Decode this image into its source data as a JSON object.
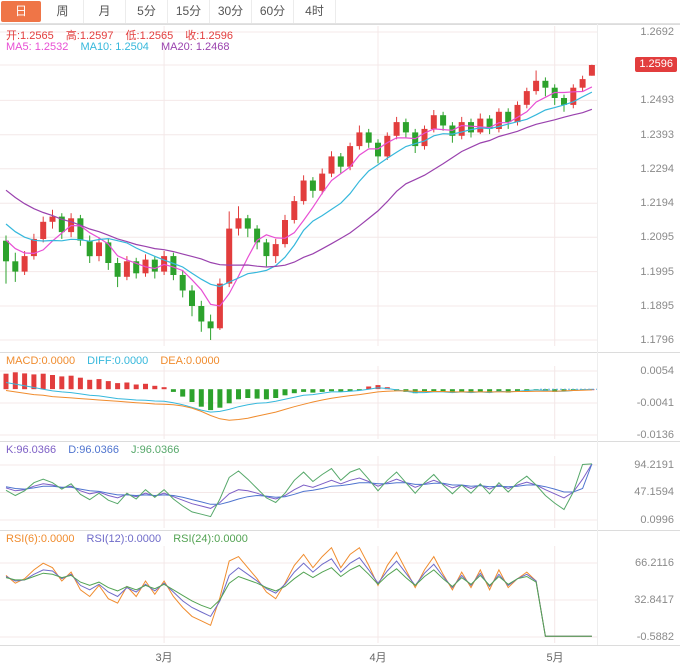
{
  "toolbar": {
    "tabs": [
      {
        "name": "day",
        "label": "日",
        "active": true
      },
      {
        "name": "week",
        "label": "周",
        "active": false
      },
      {
        "name": "month",
        "label": "月",
        "active": false
      },
      {
        "name": "min5",
        "label": "5分",
        "active": false
      },
      {
        "name": "min15",
        "label": "15分",
        "active": false
      },
      {
        "name": "min30",
        "label": "30分",
        "active": false
      },
      {
        "name": "min60",
        "label": "60分",
        "active": false
      },
      {
        "name": "hour4",
        "label": "4时",
        "active": false
      }
    ]
  },
  "main": {
    "ohlc": {
      "open": "开:1.2565",
      "high": "高:1.2597",
      "low": "低:1.2565",
      "close": "收:1.2596"
    },
    "ma": {
      "ma5": "MA5: 1.2532",
      "ma10": "MA10: 1.2504",
      "ma20": "MA20: 1.2468"
    },
    "current_price": "1.2596"
  },
  "macd_header": {
    "macd": "MACD:0.0000",
    "diff": "DIFF:0.0000",
    "dea": "DEA:0.0000"
  },
  "kdj_header": {
    "k": "K:96.0366",
    "d": "D:96.0366",
    "j": "J:96.0366"
  },
  "rsi_header": {
    "rsi6": "RSI(6):0.0000",
    "rsi12": "RSI(12):0.0000",
    "rsi24": "RSI(24):0.0000"
  },
  "x_axis": {
    "labels": [
      "3月",
      "4月",
      "5月"
    ],
    "candle_index": [
      17,
      40,
      59
    ]
  },
  "colors": {
    "up": "#e23d3d",
    "down": "#2ca22c",
    "ma5": "#e84fd4",
    "ma10": "#36b8dc",
    "ma20": "#9a42ae",
    "orange": "#f08c2e",
    "accent": "#ef7547",
    "kdj_k": "#7d5fc6",
    "kdj_d": "#4f74cf",
    "kdj_j": "#56a86a",
    "rsi12": "#6f6bc9",
    "rsi24": "#53a353",
    "axis_text": "#8a8a8a",
    "grid": "#f4e8e8",
    "dotted": "#5ab0e0"
  },
  "chart_data": [
    {
      "type": "candlestick",
      "name": "main",
      "title": "日K with MA5/MA10/MA20",
      "y_axis": [
        "1.2692",
        "1.2596",
        "1.2493",
        "1.2393",
        "1.2294",
        "1.2194",
        "1.2095",
        "1.1995",
        "1.1895",
        "1.1796"
      ],
      "ylim": [
        1.1796,
        1.2692
      ],
      "ma_periods": [
        5,
        10,
        20
      ],
      "ma_seed_closes": [
        1.244,
        1.242,
        1.24,
        1.238,
        1.236,
        1.234,
        1.232,
        1.23,
        1.228,
        1.226,
        1.224,
        1.222,
        1.22,
        1.218,
        1.216,
        1.214,
        1.212,
        1.2105,
        1.2095,
        1.209
      ],
      "ohlc": [
        [
          1.2085,
          1.21,
          1.196,
          1.2025
        ],
        [
          1.2025,
          1.205,
          1.1965,
          1.1995
        ],
        [
          1.1995,
          1.2055,
          1.1985,
          1.204
        ],
        [
          1.204,
          1.2105,
          1.203,
          1.209
        ],
        [
          1.209,
          1.2155,
          1.208,
          1.214
        ],
        [
          1.214,
          1.2175,
          1.212,
          1.2155
        ],
        [
          1.2155,
          1.2165,
          1.209,
          1.211
        ],
        [
          1.211,
          1.2165,
          1.2095,
          1.215
        ],
        [
          1.215,
          1.216,
          1.207,
          1.2085
        ],
        [
          1.2085,
          1.21,
          1.202,
          1.204
        ],
        [
          1.204,
          1.2095,
          1.2025,
          1.208
        ],
        [
          1.208,
          1.209,
          1.2,
          1.202
        ],
        [
          1.202,
          1.2035,
          1.195,
          1.198
        ],
        [
          1.198,
          1.204,
          1.197,
          1.2025
        ],
        [
          1.2025,
          1.2035,
          1.1975,
          1.199
        ],
        [
          1.199,
          1.2045,
          1.198,
          1.203
        ],
        [
          1.203,
          1.204,
          1.1975,
          1.1995
        ],
        [
          1.1995,
          1.2055,
          1.1985,
          1.204
        ],
        [
          1.204,
          1.205,
          1.197,
          1.1985
        ],
        [
          1.1985,
          1.2,
          1.192,
          1.194
        ],
        [
          1.194,
          1.1955,
          1.1865,
          1.1895
        ],
        [
          1.1895,
          1.191,
          1.182,
          1.185
        ],
        [
          1.185,
          1.187,
          1.1796,
          1.183
        ],
        [
          1.183,
          1.1975,
          1.1825,
          1.196
        ],
        [
          1.196,
          1.217,
          1.195,
          1.212
        ],
        [
          1.212,
          1.2185,
          1.21,
          1.215
        ],
        [
          1.215,
          1.216,
          1.2095,
          1.212
        ],
        [
          1.212,
          1.213,
          1.206,
          1.208
        ],
        [
          1.208,
          1.209,
          1.201,
          1.204
        ],
        [
          1.204,
          1.209,
          1.202,
          1.2075
        ],
        [
          1.2075,
          1.216,
          1.2065,
          1.2145
        ],
        [
          1.2145,
          1.2215,
          1.2135,
          1.22
        ],
        [
          1.22,
          1.2275,
          1.219,
          1.226
        ],
        [
          1.226,
          1.227,
          1.221,
          1.223
        ],
        [
          1.223,
          1.2295,
          1.222,
          1.228
        ],
        [
          1.228,
          1.2345,
          1.227,
          1.233
        ],
        [
          1.233,
          1.234,
          1.228,
          1.23
        ],
        [
          1.23,
          1.237,
          1.229,
          1.236
        ],
        [
          1.236,
          1.242,
          1.235,
          1.24
        ],
        [
          1.24,
          1.241,
          1.2355,
          1.237
        ],
        [
          1.237,
          1.238,
          1.231,
          1.233
        ],
        [
          1.233,
          1.24,
          1.232,
          1.239
        ],
        [
          1.239,
          1.2445,
          1.238,
          1.243
        ],
        [
          1.243,
          1.244,
          1.2385,
          1.24
        ],
        [
          1.24,
          1.241,
          1.234,
          1.236
        ],
        [
          1.236,
          1.242,
          1.235,
          1.241
        ],
        [
          1.241,
          1.2465,
          1.24,
          1.245
        ],
        [
          1.245,
          1.246,
          1.2405,
          1.242
        ],
        [
          1.242,
          1.243,
          1.237,
          1.239
        ],
        [
          1.239,
          1.2445,
          1.238,
          1.243
        ],
        [
          1.243,
          1.244,
          1.2385,
          1.24
        ],
        [
          1.24,
          1.2455,
          1.2395,
          1.244
        ],
        [
          1.244,
          1.245,
          1.2395,
          1.241
        ],
        [
          1.241,
          1.247,
          1.24,
          1.246
        ],
        [
          1.246,
          1.247,
          1.241,
          1.243
        ],
        [
          1.243,
          1.249,
          1.242,
          1.248
        ],
        [
          1.248,
          1.253,
          1.247,
          1.252
        ],
        [
          1.252,
          1.258,
          1.251,
          1.255
        ],
        [
          1.255,
          1.256,
          1.2505,
          1.253
        ],
        [
          1.253,
          1.254,
          1.248,
          1.25
        ],
        [
          1.25,
          1.251,
          1.246,
          1.248
        ],
        [
          1.248,
          1.254,
          1.247,
          1.253
        ],
        [
          1.253,
          1.2565,
          1.252,
          1.2555
        ],
        [
          1.2565,
          1.2597,
          1.2565,
          1.2596
        ]
      ]
    },
    {
      "type": "bar",
      "name": "macd",
      "title": "MACD(12,26,9)",
      "y_axis": [
        "0.0054",
        "-0.0041",
        "-0.0136"
      ],
      "hist": [
        0.0046,
        0.005,
        0.0047,
        0.0044,
        0.0046,
        0.0042,
        0.0038,
        0.004,
        0.0034,
        0.0028,
        0.003,
        0.0024,
        0.0018,
        0.002,
        0.0014,
        0.0016,
        0.001,
        0.0006,
        -0.0008,
        -0.0022,
        -0.0038,
        -0.0052,
        -0.0062,
        -0.0055,
        -0.0042,
        -0.003,
        -0.0026,
        -0.0028,
        -0.003,
        -0.0026,
        -0.0018,
        -0.0012,
        -0.0008,
        -0.001,
        -0.0008,
        -0.0006,
        -0.0008,
        -0.0006,
        -0.0004,
        0.0008,
        0.0012,
        0.0006,
        -0.0004,
        -0.0008,
        -0.0012,
        -0.0008,
        -0.0006,
        -0.0008,
        -0.001,
        -0.0008,
        -0.001,
        -0.0008,
        -0.001,
        -0.0008,
        -0.001,
        -0.0008,
        -0.0006,
        -0.0004,
        -0.0006,
        -0.0008,
        -0.0006,
        -0.0004,
        -0.0002,
        0.0
      ],
      "diff": [
        0.002,
        0.0015,
        0.001,
        0.0005,
        0.0,
        -0.0005,
        -0.0008,
        -0.001,
        -0.0014,
        -0.0018,
        -0.002,
        -0.0024,
        -0.0028,
        -0.003,
        -0.0032,
        -0.0033,
        -0.0035,
        -0.0036,
        -0.004,
        -0.0046,
        -0.0054,
        -0.0062,
        -0.0068,
        -0.0066,
        -0.006,
        -0.0052,
        -0.0046,
        -0.0042,
        -0.004,
        -0.0036,
        -0.003,
        -0.0024,
        -0.0018,
        -0.0016,
        -0.0012,
        -0.0008,
        -0.0008,
        -0.0006,
        -0.0004,
        0.0,
        0.0004,
        0.0002,
        -0.0002,
        -0.0006,
        -0.001,
        -0.001,
        -0.0008,
        -0.0008,
        -0.001,
        -0.0008,
        -0.001,
        -0.0008,
        -0.001,
        -0.0006,
        -0.0008,
        -0.0006,
        -0.0004,
        -0.0002,
        -0.0004,
        -0.0006,
        -0.0006,
        -0.0004,
        -0.0002,
        0.0
      ],
      "dea": [
        -0.0004,
        -0.0008,
        -0.0012,
        -0.0016,
        -0.0018,
        -0.0022,
        -0.0024,
        -0.0026,
        -0.0028,
        -0.003,
        -0.0032,
        -0.0034,
        -0.0036,
        -0.0038,
        -0.004,
        -0.0042,
        -0.0044,
        -0.0045,
        -0.0046,
        -0.005,
        -0.0056,
        -0.0066,
        -0.0078,
        -0.0088,
        -0.0092,
        -0.009,
        -0.0086,
        -0.008,
        -0.0074,
        -0.0068,
        -0.006,
        -0.0052,
        -0.0045,
        -0.0038,
        -0.0032,
        -0.0027,
        -0.0023,
        -0.0019,
        -0.0016,
        -0.0012,
        -0.0008,
        -0.0006,
        -0.0005,
        -0.0005,
        -0.0006,
        -0.0007,
        -0.0007,
        -0.0007,
        -0.0008,
        -0.0008,
        -0.0008,
        -0.0008,
        -0.0008,
        -0.0008,
        -0.0008,
        -0.0007,
        -0.0007,
        -0.0006,
        -0.0006,
        -0.0006,
        -0.0005,
        -0.0004,
        -0.0003,
        -0.0002
      ]
    },
    {
      "type": "line",
      "name": "kdj",
      "title": "KDJ",
      "y_axis": [
        "94.2191",
        "47.1594",
        "0.0996"
      ],
      "series": {
        "k": [
          55,
          50,
          52,
          58,
          62,
          60,
          55,
          58,
          50,
          45,
          48,
          42,
          38,
          44,
          40,
          46,
          41,
          46,
          40,
          34,
          28,
          24,
          20,
          30,
          45,
          52,
          50,
          46,
          40,
          36,
          42,
          52,
          60,
          56,
          62,
          68,
          62,
          68,
          72,
          66,
          58,
          64,
          70,
          64,
          56,
          62,
          68,
          62,
          55,
          60,
          54,
          60,
          53,
          60,
          54,
          60,
          65,
          60,
          52,
          45,
          38,
          48,
          70,
          96.04
        ],
        "d": [
          57,
          54,
          53,
          55,
          58,
          58,
          56,
          56,
          53,
          50,
          49,
          46,
          43,
          43,
          42,
          43,
          42,
          43,
          42,
          39,
          35,
          31,
          27,
          27,
          31,
          36,
          40,
          42,
          41,
          39,
          40,
          44,
          49,
          51,
          54,
          58,
          59,
          61,
          64,
          64,
          62,
          62,
          64,
          64,
          61,
          61,
          63,
          63,
          60,
          60,
          58,
          59,
          57,
          58,
          57,
          58,
          60,
          60,
          57,
          53,
          48,
          48,
          54,
          96.04
        ],
        "j": [
          51,
          42,
          50,
          64,
          70,
          64,
          53,
          62,
          44,
          35,
          46,
          34,
          28,
          46,
          36,
          52,
          39,
          52,
          36,
          24,
          14,
          10,
          6,
          36,
          73,
          84,
          70,
          54,
          38,
          30,
          46,
          68,
          82,
          66,
          78,
          88,
          68,
          82,
          88,
          70,
          50,
          68,
          82,
          64,
          46,
          64,
          78,
          60,
          45,
          60,
          46,
          62,
          45,
          64,
          48,
          64,
          75,
          60,
          42,
          29,
          18,
          48,
          95,
          96.04
        ]
      }
    },
    {
      "type": "line",
      "name": "rsi",
      "title": "RSI",
      "y_axis": [
        "66.2116",
        "32.8417",
        "-0.5882"
      ],
      "series": {
        "rsi6": [
          55,
          48,
          52,
          60,
          66,
          62,
          50,
          58,
          42,
          36,
          46,
          34,
          30,
          45,
          36,
          50,
          38,
          50,
          36,
          26,
          18,
          14,
          10,
          35,
          68,
          72,
          62,
          52,
          40,
          34,
          48,
          64,
          74,
          62,
          72,
          80,
          62,
          74,
          80,
          64,
          46,
          64,
          76,
          60,
          44,
          60,
          72,
          56,
          42,
          58,
          44,
          60,
          42,
          60,
          44,
          52,
          58,
          50,
          0,
          0,
          0,
          0,
          0,
          0
        ],
        "rsi12": [
          54,
          50,
          51,
          56,
          60,
          59,
          52,
          56,
          46,
          42,
          47,
          40,
          36,
          44,
          40,
          47,
          41,
          48,
          40,
          32,
          26,
          22,
          18,
          32,
          55,
          62,
          56,
          50,
          43,
          39,
          47,
          58,
          66,
          58,
          65,
          70,
          58,
          66,
          71,
          60,
          48,
          59,
          68,
          57,
          46,
          57,
          65,
          54,
          44,
          55,
          46,
          57,
          45,
          56,
          46,
          52,
          56,
          50,
          0,
          0,
          0,
          0,
          0,
          0
        ],
        "rsi24": [
          53,
          51,
          51,
          54,
          57,
          56,
          53,
          55,
          49,
          46,
          49,
          44,
          41,
          45,
          42,
          46,
          43,
          47,
          42,
          37,
          32,
          28,
          25,
          33,
          48,
          54,
          51,
          48,
          44,
          41,
          45,
          52,
          58,
          53,
          58,
          62,
          54,
          60,
          64,
          56,
          47,
          55,
          61,
          53,
          46,
          54,
          60,
          52,
          45,
          53,
          47,
          55,
          46,
          54,
          47,
          52,
          54,
          49,
          0,
          0,
          0,
          0,
          0,
          0
        ]
      }
    }
  ]
}
